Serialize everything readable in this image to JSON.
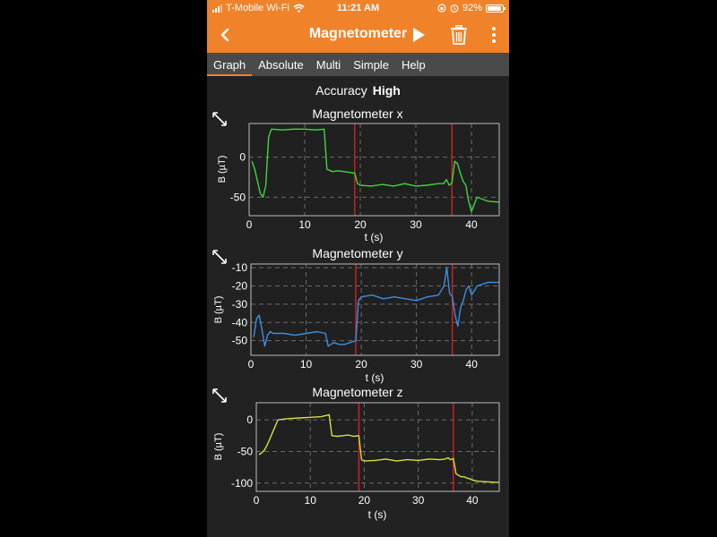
{
  "status_bar": {
    "carrier": "T-Mobile Wi-Fi",
    "time": "11:21 AM",
    "battery": "92%"
  },
  "app_bar": {
    "title": "Magnetometer",
    "back_icon": "chevron-left-icon",
    "play_icon": "play-icon",
    "delete_icon": "trash-icon",
    "menu_icon": "more-vert-icon"
  },
  "tabs": [
    {
      "label": "Graph",
      "active": true
    },
    {
      "label": "Absolute",
      "active": false
    },
    {
      "label": "Multi",
      "active": false
    },
    {
      "label": "Simple",
      "active": false
    },
    {
      "label": "Help",
      "active": false
    }
  ],
  "accuracy": {
    "label": "Accuracy",
    "value": "High"
  },
  "colors": {
    "accent": "#f0822a",
    "x_series": "#3ed63e",
    "y_series": "#3d8fe0",
    "z_series": "#d7df3e",
    "marker": "#d42020"
  },
  "chart_data": [
    {
      "type": "line",
      "title": "Magnetometer x",
      "xlabel": "t (s)",
      "ylabel": "B (µT)",
      "xlim": [
        0,
        45
      ],
      "ylim": [
        -73,
        42
      ],
      "xticks": [
        0,
        10,
        20,
        30,
        40
      ],
      "yticks": [
        0,
        -50
      ],
      "markers": [
        19,
        36.5
      ],
      "series": [
        {
          "color": "#3ed63e",
          "x": [
            0.5,
            1,
            1.5,
            2,
            2.5,
            3,
            3.5,
            4,
            6,
            8,
            10,
            12,
            13.5,
            14,
            15,
            16,
            17,
            18,
            19,
            19.5,
            20,
            22,
            24,
            26,
            28,
            30,
            32,
            34,
            35,
            35.5,
            36,
            36.5,
            37,
            37.5,
            38,
            38.5,
            39,
            39.5,
            40,
            41,
            43,
            45
          ],
          "y": [
            -5,
            -15,
            -30,
            -45,
            -50,
            -35,
            25,
            35,
            34,
            35,
            35,
            34,
            35,
            -15,
            -18,
            -17,
            -18,
            -19,
            -20,
            -33,
            -35,
            -36,
            -34,
            -36,
            -33,
            -36,
            -35,
            -33,
            -33,
            -28,
            -35,
            -32,
            -5,
            -8,
            -20,
            -30,
            -35,
            -55,
            -68,
            -50,
            -55,
            -56
          ]
        }
      ]
    },
    {
      "type": "line",
      "title": "Magnetometer y",
      "xlabel": "t (s)",
      "ylabel": "B (µT)",
      "xlim": [
        0,
        45
      ],
      "ylim": [
        -58,
        -8
      ],
      "xticks": [
        0,
        10,
        20,
        30,
        40
      ],
      "yticks": [
        -10,
        -20,
        -30,
        -40,
        -50
      ],
      "markers": [
        19,
        36.5
      ],
      "series": [
        {
          "color": "#3d8fe0",
          "x": [
            0.5,
            1,
            1.5,
            2,
            2.5,
            3,
            3.5,
            4,
            6,
            8,
            10,
            12,
            13.5,
            14,
            15,
            16,
            17,
            18,
            19,
            19.5,
            20,
            22,
            24,
            26,
            28,
            30,
            32,
            34,
            35,
            35.5,
            36,
            36.5,
            37,
            37.5,
            38,
            38.5,
            39,
            39.5,
            40,
            41,
            43,
            45
          ],
          "y": [
            -48,
            -38,
            -36,
            -44,
            -53,
            -47,
            -45,
            -46,
            -46,
            -47,
            -46,
            -45,
            -46,
            -53,
            -51,
            -52,
            -52,
            -51,
            -50,
            -28,
            -26,
            -25,
            -27,
            -26,
            -27,
            -28,
            -26,
            -25,
            -20,
            -10,
            -24,
            -26,
            -36,
            -42,
            -32,
            -28,
            -22,
            -20,
            -25,
            -20,
            -18,
            -18
          ]
        }
      ]
    },
    {
      "type": "line",
      "title": "Magnetometer z",
      "xlabel": "t (s)",
      "ylabel": "B (µT)",
      "xlim": [
        0,
        45
      ],
      "ylim": [
        -113,
        27
      ],
      "xticks": [
        0,
        10,
        20,
        30,
        40
      ],
      "yticks": [
        0,
        -50,
        -100
      ],
      "markers": [
        19,
        36.5
      ],
      "series": [
        {
          "color": "#d7df3e",
          "x": [
            0.5,
            1,
            1.5,
            2,
            2.5,
            3,
            3.5,
            4,
            6,
            8,
            10,
            12,
            13.5,
            14,
            15,
            16,
            17,
            18,
            19,
            19.5,
            20,
            22,
            24,
            26,
            28,
            30,
            32,
            34,
            35,
            35.5,
            36,
            36.5,
            37,
            37.5,
            38,
            38.5,
            39,
            39.5,
            40,
            41,
            43,
            45
          ],
          "y": [
            -55,
            -52,
            -48,
            -40,
            -30,
            -20,
            -10,
            0,
            2,
            3,
            4,
            5,
            8,
            -25,
            -26,
            -25,
            -24,
            -26,
            -25,
            -63,
            -65,
            -64,
            -62,
            -65,
            -63,
            -64,
            -62,
            -63,
            -62,
            -60,
            -63,
            -61,
            -85,
            -88,
            -90,
            -90,
            -92,
            -93,
            -95,
            -97,
            -98,
            -99
          ]
        }
      ]
    }
  ]
}
